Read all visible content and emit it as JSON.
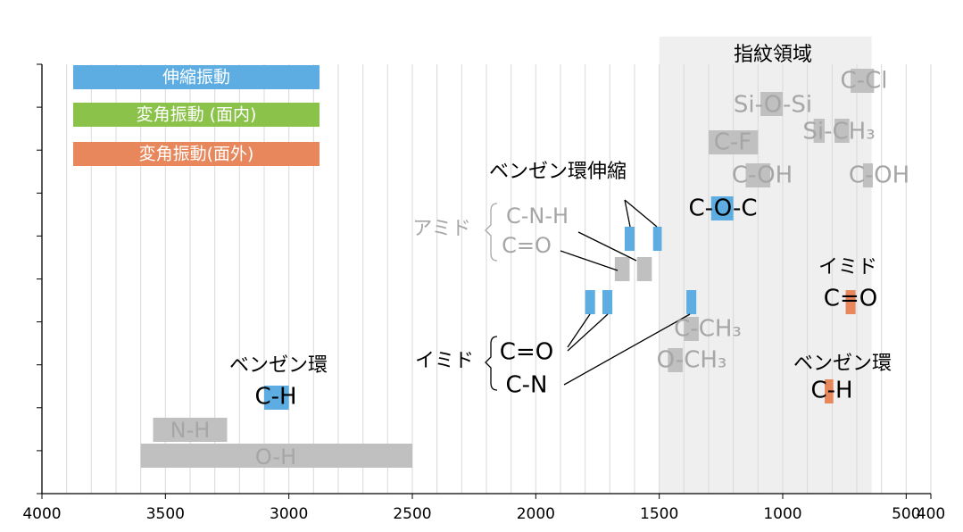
{
  "chart_data": {
    "type": "range-bar",
    "xlim": [
      4000,
      400
    ],
    "xticks": [
      4000,
      3500,
      3000,
      2500,
      2000,
      1500,
      1000,
      500,
      400
    ],
    "grid": true,
    "region": {
      "label": "指紋領域",
      "x": [
        1500,
        640
      ],
      "color": "#efefef"
    },
    "series": [
      {
        "name": "伸縮振動",
        "color": "#5dade2",
        "bars": [
          [
            3100,
            3000
          ],
          [
            1290,
            1200
          ],
          [
            1640,
            1600
          ],
          [
            1525,
            1490
          ],
          [
            1800,
            1760
          ],
          [
            1730,
            1690
          ],
          [
            1390,
            1350
          ]
        ]
      },
      {
        "name": "変角振動 (面内)",
        "color": "#8bc34a",
        "bars": []
      },
      {
        "name": "変角振動(面外)",
        "color": "#e8875c",
        "bars": [
          [
            745,
            705
          ],
          [
            830,
            795
          ]
        ]
      }
    ],
    "other_bars": {
      "color": "#c0c0c0",
      "bars": [
        [
          725,
          630
        ],
        [
          1090,
          1000
        ],
        [
          875,
          830
        ],
        [
          790,
          730
        ],
        [
          1300,
          1100
        ],
        [
          1150,
          1050
        ],
        [
          675,
          635
        ],
        [
          1680,
          1620
        ],
        [
          1590,
          1530
        ],
        [
          1400,
          1340
        ],
        [
          1465,
          1405
        ],
        [
          3550,
          3250
        ],
        [
          3600,
          2500
        ]
      ]
    },
    "annotations": [
      {
        "text": "C-Cl",
        "color": "#a6a6a6"
      },
      {
        "text": "Si-O-Si",
        "color": "#a6a6a6"
      },
      {
        "text": "Si-CH₃",
        "color": "#a6a6a6"
      },
      {
        "text": "C-F",
        "color": "#a6a6a6"
      },
      {
        "text": "C-OH",
        "color": "#a6a6a6"
      },
      {
        "text": "C-OH",
        "color": "#a6a6a6"
      },
      {
        "text": "ベンゼン環伸縮",
        "color": "#000000"
      },
      {
        "text": "C-O-C",
        "color": "#000000"
      },
      {
        "text": "アミド",
        "color": "#a6a6a6"
      },
      {
        "text": "C-N-H",
        "color": "#a6a6a6"
      },
      {
        "text": "C=O",
        "color": "#a6a6a6"
      },
      {
        "text": "イミド",
        "color": "#000000"
      },
      {
        "text": "C=O",
        "color": "#000000"
      },
      {
        "text": "C-CH₃",
        "color": "#a6a6a6"
      },
      {
        "text": "O-CH₃",
        "color": "#a6a6a6"
      },
      {
        "text": "ベンゼン環",
        "color": "#000000"
      },
      {
        "text": "ベンゼン環",
        "color": "#000000"
      },
      {
        "text": "C-H",
        "color": "#000000"
      },
      {
        "text": "C-H",
        "color": "#000000"
      },
      {
        "text": "イミド",
        "color": "#000000"
      },
      {
        "text": "C=O",
        "color": "#000000"
      },
      {
        "text": "C-N",
        "color": "#000000"
      },
      {
        "text": "N-H",
        "color": "#a6a6a6"
      },
      {
        "text": "O-H",
        "color": "#a6a6a6"
      }
    ]
  }
}
